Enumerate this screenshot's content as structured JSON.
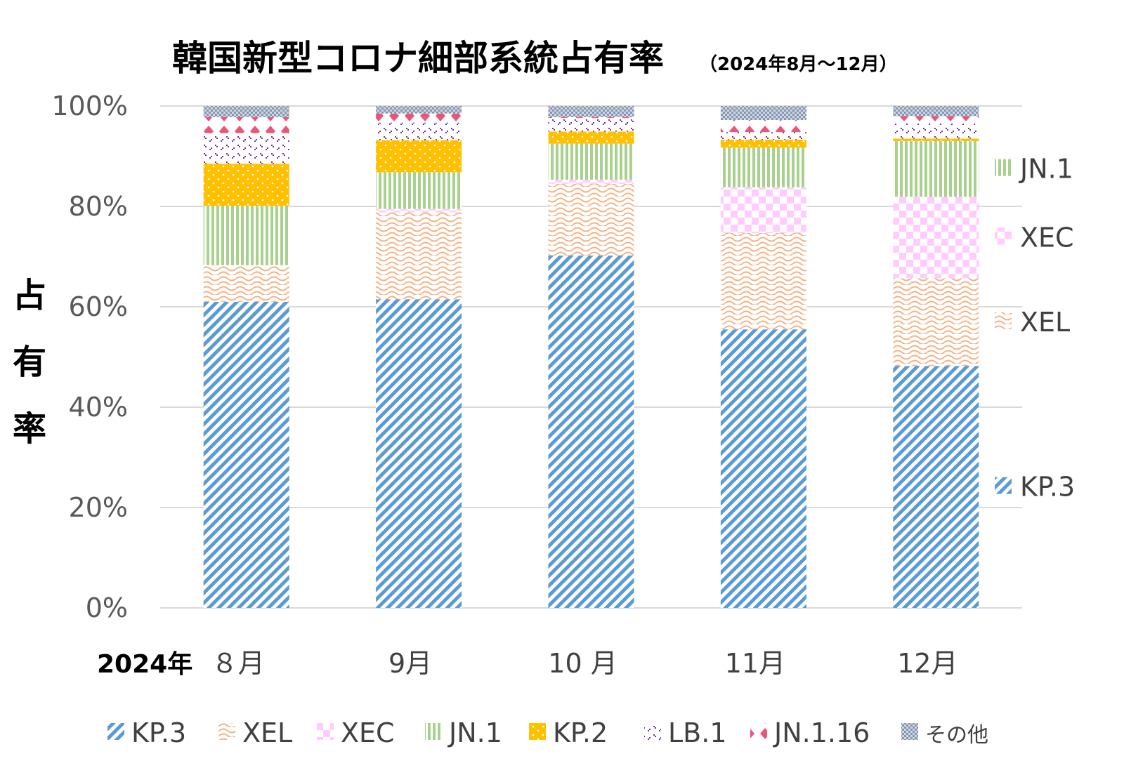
{
  "chart_data": {
    "type": "bar",
    "stacked": true,
    "title": "韓国新型コロナ細部系統占有率",
    "subtitle": "（2024年8月～12月）",
    "ylabel": "占有率",
    "x_prefix": "2024年",
    "categories": [
      "８月",
      "9月",
      "10 月",
      "11月",
      "12月"
    ],
    "ylim": [
      0,
      100
    ],
    "yticks": [
      "0%",
      "20%",
      "40%",
      "60%",
      "80%",
      "100%"
    ],
    "grid": true,
    "legend_position": "bottom",
    "series": [
      {
        "name": "KP.3",
        "color": "#5b9bd5",
        "pattern": "diagonal-stripes",
        "values": [
          61,
          61.5,
          70.2,
          55.5,
          48.2
        ]
      },
      {
        "name": "XEL",
        "color": "#f4b183",
        "pattern": "waves",
        "values": [
          7.3,
          17.3,
          14.3,
          19.2,
          17.5
        ]
      },
      {
        "name": "XEC",
        "color": "#ffccff",
        "pattern": "checker",
        "values": [
          0,
          0.7,
          0.8,
          9.1,
          16.2
        ]
      },
      {
        "name": "JN.1",
        "color": "#a9d18e",
        "pattern": "vertical-stripes",
        "values": [
          11.8,
          7.3,
          7.2,
          7.9,
          11.1
        ]
      },
      {
        "name": "KP.2",
        "color": "#ffc000",
        "pattern": "dots",
        "values": [
          8.4,
          6.4,
          2.4,
          1.6,
          0.5
        ]
      },
      {
        "name": "LB.1",
        "color": "#7030a0",
        "pattern": "dashes",
        "values": [
          6.1,
          3.5,
          2.7,
          1.5,
          3
        ]
      },
      {
        "name": "JN.1.16",
        "color": "#e8577a",
        "pattern": "diamonds",
        "values": [
          3.2,
          1.8,
          0.2,
          2.4,
          1.5
        ]
      },
      {
        "name": "その他",
        "color": "#8496b0",
        "pattern": "small-checker",
        "values": [
          2.2,
          1.5,
          2.2,
          2.8,
          2
        ]
      }
    ],
    "end_labels": [
      "JN.1",
      "XEC",
      "XEL",
      "KP.3"
    ]
  }
}
